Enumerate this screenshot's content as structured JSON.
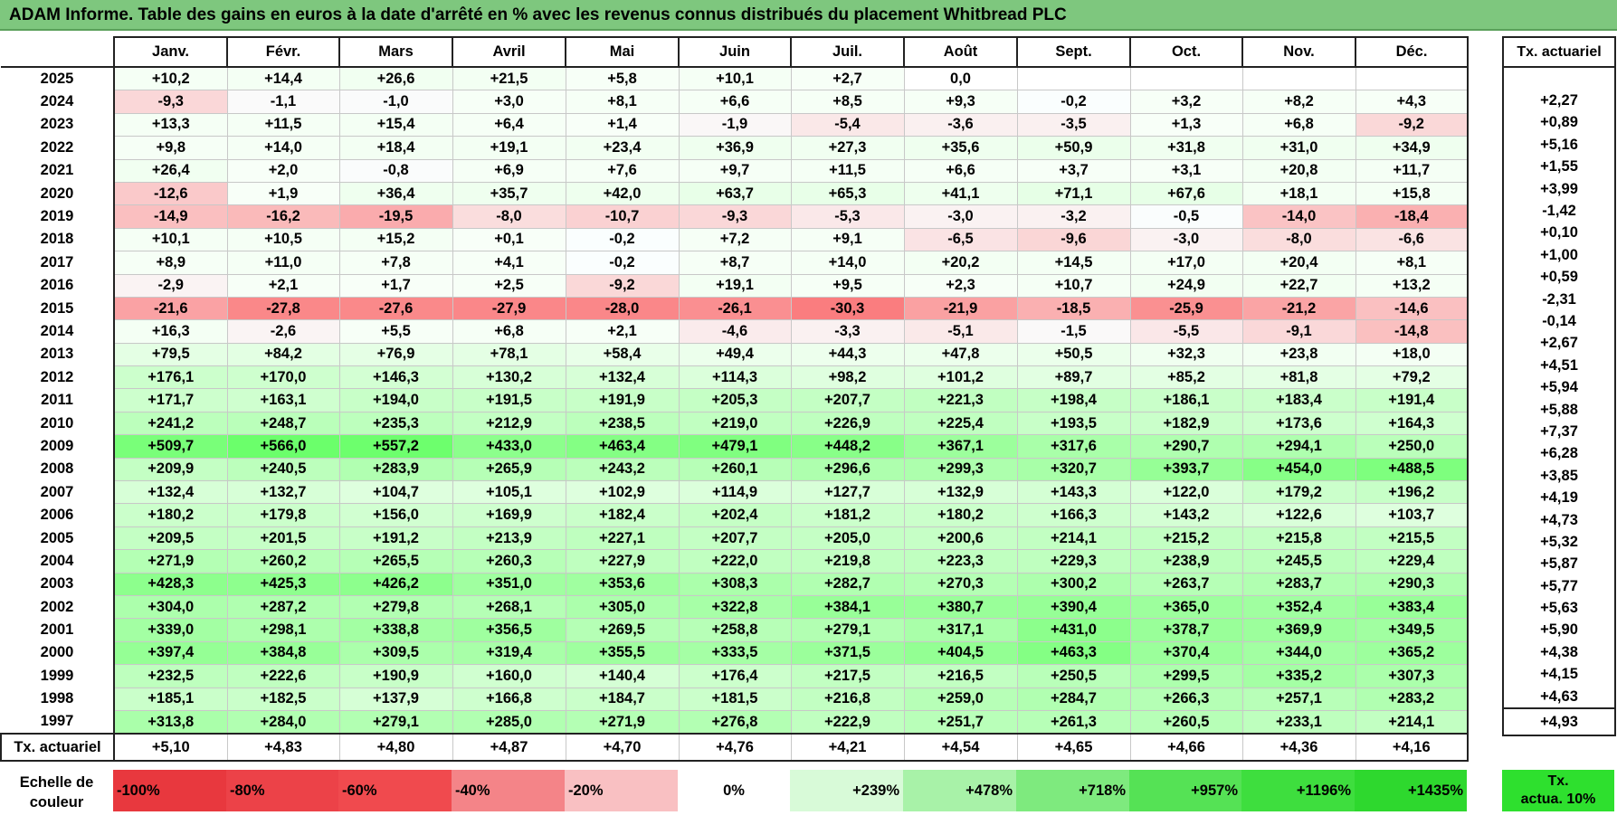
{
  "title": "ADAM Informe. Table des gains en euros à la date d'arrêté en % avec les revenus connus distribués du placement Whitbread PLC",
  "months": [
    "Janv.",
    "Févr.",
    "Mars",
    "Avril",
    "Mai",
    "Juin",
    "Juil.",
    "Août",
    "Sept.",
    "Oct.",
    "Nov.",
    "Déc."
  ],
  "side_header": "Tx. actuariel",
  "rows": [
    {
      "year": "2025",
      "values": [
        "+10,2",
        "+14,4",
        "+26,6",
        "+21,5",
        "+5,8",
        "+10,1",
        "+2,7",
        "0,0",
        "",
        "",
        "",
        ""
      ],
      "rate": ""
    },
    {
      "year": "2024",
      "values": [
        "-9,3",
        "-1,1",
        "-1,0",
        "+3,0",
        "+8,1",
        "+6,6",
        "+8,5",
        "+9,3",
        "-0,2",
        "+3,2",
        "+8,2",
        "+4,3"
      ],
      "rate": "+2,27"
    },
    {
      "year": "2023",
      "values": [
        "+13,3",
        "+11,5",
        "+15,4",
        "+6,4",
        "+1,4",
        "-1,9",
        "-5,4",
        "-3,6",
        "-3,5",
        "+1,3",
        "+6,8",
        "-9,2"
      ],
      "rate": "+0,89"
    },
    {
      "year": "2022",
      "values": [
        "+9,8",
        "+14,0",
        "+18,4",
        "+19,1",
        "+23,4",
        "+36,9",
        "+27,3",
        "+35,6",
        "+50,9",
        "+31,8",
        "+31,0",
        "+34,9"
      ],
      "rate": "+5,16"
    },
    {
      "year": "2021",
      "values": [
        "+26,4",
        "+2,0",
        "-0,8",
        "+6,9",
        "+7,6",
        "+9,7",
        "+11,5",
        "+6,6",
        "+3,7",
        "+3,1",
        "+20,8",
        "+11,7"
      ],
      "rate": "+1,55"
    },
    {
      "year": "2020",
      "values": [
        "-12,6",
        "+1,9",
        "+36,4",
        "+35,7",
        "+42,0",
        "+63,7",
        "+65,3",
        "+41,1",
        "+71,1",
        "+67,6",
        "+18,1",
        "+15,8"
      ],
      "rate": "+3,99"
    },
    {
      "year": "2019",
      "values": [
        "-14,9",
        "-16,2",
        "-19,5",
        "-8,0",
        "-10,7",
        "-9,3",
        "-5,3",
        "-3,0",
        "-3,2",
        "-0,5",
        "-14,0",
        "-18,4"
      ],
      "rate": "-1,42"
    },
    {
      "year": "2018",
      "values": [
        "+10,1",
        "+10,5",
        "+15,2",
        "+0,1",
        "-0,2",
        "+7,2",
        "+9,1",
        "-6,5",
        "-9,6",
        "-3,0",
        "-8,0",
        "-6,6"
      ],
      "rate": "+0,10"
    },
    {
      "year": "2017",
      "values": [
        "+8,9",
        "+11,0",
        "+7,8",
        "+4,1",
        "-0,2",
        "+8,7",
        "+14,0",
        "+20,2",
        "+14,5",
        "+17,0",
        "+20,4",
        "+8,1"
      ],
      "rate": "+1,00"
    },
    {
      "year": "2016",
      "values": [
        "-2,9",
        "+2,1",
        "+1,7",
        "+2,5",
        "-9,2",
        "+19,1",
        "+9,5",
        "+2,3",
        "+10,7",
        "+24,9",
        "+22,7",
        "+13,2"
      ],
      "rate": "+0,59"
    },
    {
      "year": "2015",
      "values": [
        "-21,6",
        "-27,8",
        "-27,6",
        "-27,9",
        "-28,0",
        "-26,1",
        "-30,3",
        "-21,9",
        "-18,5",
        "-25,9",
        "-21,2",
        "-14,6"
      ],
      "rate": "-2,31"
    },
    {
      "year": "2014",
      "values": [
        "+16,3",
        "-2,6",
        "+5,5",
        "+6,8",
        "+2,1",
        "-4,6",
        "-3,3",
        "-5,1",
        "-1,5",
        "-5,5",
        "-9,1",
        "-14,8"
      ],
      "rate": "-0,14"
    },
    {
      "year": "2013",
      "values": [
        "+79,5",
        "+84,2",
        "+76,9",
        "+78,1",
        "+58,4",
        "+49,4",
        "+44,3",
        "+47,8",
        "+50,5",
        "+32,3",
        "+23,8",
        "+18,0"
      ],
      "rate": "+2,67"
    },
    {
      "year": "2012",
      "values": [
        "+176,1",
        "+170,0",
        "+146,3",
        "+130,2",
        "+132,4",
        "+114,3",
        "+98,2",
        "+101,2",
        "+89,7",
        "+85,2",
        "+81,8",
        "+79,2"
      ],
      "rate": "+4,51"
    },
    {
      "year": "2011",
      "values": [
        "+171,7",
        "+163,1",
        "+194,0",
        "+191,5",
        "+191,9",
        "+205,3",
        "+207,7",
        "+221,3",
        "+198,4",
        "+186,1",
        "+183,4",
        "+191,4"
      ],
      "rate": "+5,94"
    },
    {
      "year": "2010",
      "values": [
        "+241,2",
        "+248,7",
        "+235,3",
        "+212,9",
        "+238,5",
        "+219,0",
        "+226,9",
        "+225,4",
        "+193,5",
        "+182,9",
        "+173,6",
        "+164,3"
      ],
      "rate": "+5,88"
    },
    {
      "year": "2009",
      "values": [
        "+509,7",
        "+566,0",
        "+557,2",
        "+433,0",
        "+463,4",
        "+479,1",
        "+448,2",
        "+367,1",
        "+317,6",
        "+290,7",
        "+294,1",
        "+250,0"
      ],
      "rate": "+7,37"
    },
    {
      "year": "2008",
      "values": [
        "+209,9",
        "+240,5",
        "+283,9",
        "+265,9",
        "+243,2",
        "+260,1",
        "+296,6",
        "+299,3",
        "+320,7",
        "+393,7",
        "+454,0",
        "+488,5"
      ],
      "rate": "+6,28"
    },
    {
      "year": "2007",
      "values": [
        "+132,4",
        "+132,7",
        "+104,7",
        "+105,1",
        "+102,9",
        "+114,9",
        "+127,7",
        "+132,9",
        "+143,3",
        "+122,0",
        "+179,2",
        "+196,2"
      ],
      "rate": "+3,85"
    },
    {
      "year": "2006",
      "values": [
        "+180,2",
        "+179,8",
        "+156,0",
        "+169,9",
        "+182,4",
        "+202,4",
        "+181,2",
        "+180,2",
        "+166,3",
        "+143,2",
        "+122,6",
        "+103,7"
      ],
      "rate": "+4,19"
    },
    {
      "year": "2005",
      "values": [
        "+209,5",
        "+201,5",
        "+191,2",
        "+213,9",
        "+227,1",
        "+207,7",
        "+205,0",
        "+200,6",
        "+214,1",
        "+215,2",
        "+215,8",
        "+215,5"
      ],
      "rate": "+4,73"
    },
    {
      "year": "2004",
      "values": [
        "+271,9",
        "+260,2",
        "+265,5",
        "+260,3",
        "+227,9",
        "+222,0",
        "+219,8",
        "+223,3",
        "+229,3",
        "+238,9",
        "+245,5",
        "+229,4"
      ],
      "rate": "+5,32"
    },
    {
      "year": "2003",
      "values": [
        "+428,3",
        "+425,3",
        "+426,2",
        "+351,0",
        "+353,6",
        "+308,3",
        "+282,7",
        "+270,3",
        "+300,2",
        "+263,7",
        "+283,7",
        "+290,3"
      ],
      "rate": "+5,87"
    },
    {
      "year": "2002",
      "values": [
        "+304,0",
        "+287,2",
        "+279,8",
        "+268,1",
        "+305,0",
        "+322,8",
        "+384,1",
        "+380,7",
        "+390,4",
        "+365,0",
        "+352,4",
        "+383,4"
      ],
      "rate": "+5,77"
    },
    {
      "year": "2001",
      "values": [
        "+339,0",
        "+298,1",
        "+338,8",
        "+356,5",
        "+269,5",
        "+258,8",
        "+279,1",
        "+317,1",
        "+431,0",
        "+378,7",
        "+369,9",
        "+349,5"
      ],
      "rate": "+5,63"
    },
    {
      "year": "2000",
      "values": [
        "+397,4",
        "+384,8",
        "+309,5",
        "+319,4",
        "+355,5",
        "+333,5",
        "+371,5",
        "+404,5",
        "+463,3",
        "+370,4",
        "+344,0",
        "+365,2"
      ],
      "rate": "+5,90"
    },
    {
      "year": "1999",
      "values": [
        "+232,5",
        "+222,6",
        "+190,9",
        "+160,0",
        "+140,4",
        "+176,4",
        "+217,5",
        "+216,5",
        "+250,5",
        "+299,5",
        "+335,2",
        "+307,3"
      ],
      "rate": "+4,38"
    },
    {
      "year": "1998",
      "values": [
        "+185,1",
        "+182,5",
        "+137,9",
        "+166,8",
        "+184,7",
        "+181,5",
        "+216,8",
        "+259,0",
        "+284,7",
        "+266,3",
        "+257,1",
        "+283,2"
      ],
      "rate": "+4,15"
    },
    {
      "year": "1997",
      "values": [
        "+313,8",
        "+284,0",
        "+279,1",
        "+285,0",
        "+271,9",
        "+276,8",
        "+222,9",
        "+251,7",
        "+261,3",
        "+260,5",
        "+233,1",
        "+214,1"
      ],
      "rate": "+4,63"
    }
  ],
  "avg_row": {
    "label": "Tx. actuariel",
    "values": [
      "+5,10",
      "+4,83",
      "+4,80",
      "+4,87",
      "+4,70",
      "+4,76",
      "+4,21",
      "+4,54",
      "+4,65",
      "+4,66",
      "+4,36",
      "+4,16"
    ],
    "overall": "+4,93"
  },
  "legend": {
    "label_line1": "Echelle de",
    "label_line2": "couleur",
    "cells": [
      {
        "text": "-100%",
        "color": "#e8383e",
        "align": "left"
      },
      {
        "text": "-80%",
        "color": "#ec4248",
        "align": "left"
      },
      {
        "text": "-60%",
        "color": "#f04a4e",
        "align": "left"
      },
      {
        "text": "-40%",
        "color": "#f48488",
        "align": "left"
      },
      {
        "text": "-20%",
        "color": "#f9c0c2",
        "align": "left"
      },
      {
        "text": "0%",
        "color": "#ffffff",
        "align": "center"
      },
      {
        "text": "+239%",
        "color": "#d8fad8",
        "align": "right"
      },
      {
        "text": "+478%",
        "color": "#a8f2a8",
        "align": "right"
      },
      {
        "text": "+718%",
        "color": "#7eea7e",
        "align": "right"
      },
      {
        "text": "+957%",
        "color": "#55e255",
        "align": "right"
      },
      {
        "text": "+1196%",
        "color": "#3ede3e",
        "align": "right"
      },
      {
        "text": "+1435%",
        "color": "#2ed82e",
        "align": "right"
      }
    ],
    "side_line1": "Tx.",
    "side_line2": "actua. 10%"
  }
}
